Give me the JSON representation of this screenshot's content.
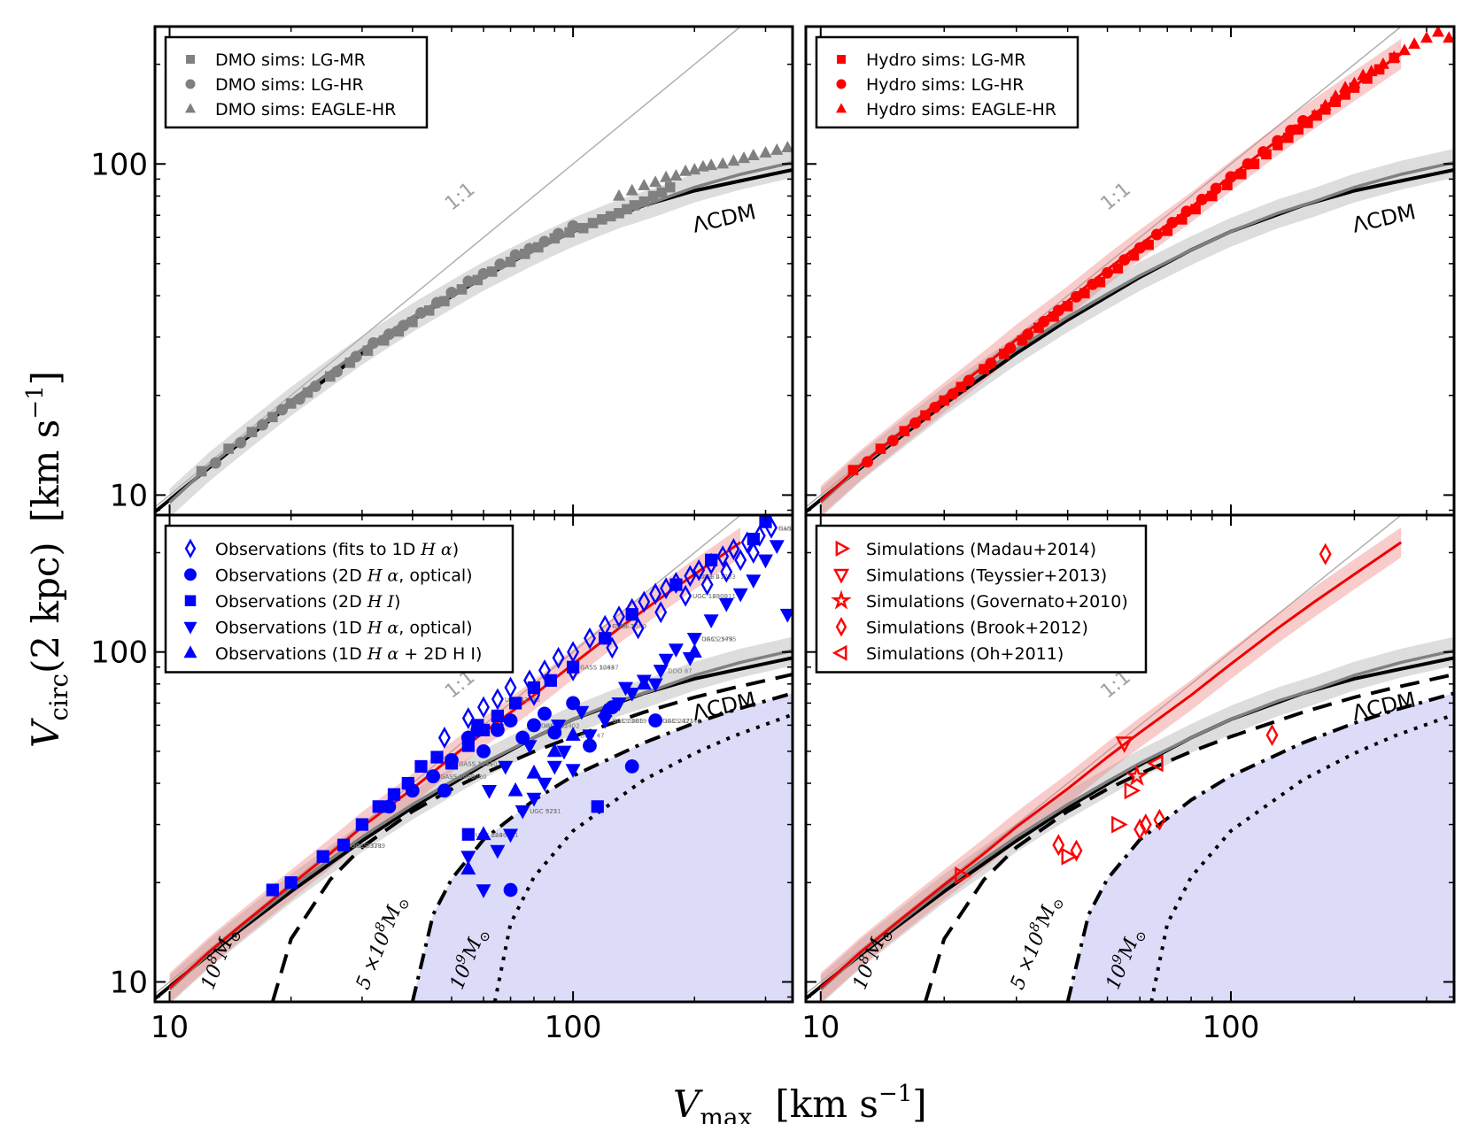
{
  "chart_data": {
    "type": "scatter",
    "layout": "2x2 grid, shared axes, log-log",
    "xlabel_main": "V",
    "xlabel_sub": "max",
    "xlabel_units": "[km s",
    "xlabel_exp": "−1",
    "xlabel_close": "]",
    "ylabel_main": "V",
    "ylabel_sub": "circ",
    "ylabel_arg": "(2  kpc)",
    "ylabel_units": "[km s",
    "ylabel_exp": "−1",
    "ylabel_close": "]",
    "xlim": [
      9.2,
      350
    ],
    "ylim": [
      8.7,
      260
    ],
    "xticks": [
      10,
      100
    ],
    "xtick_labels": [
      "10",
      "100"
    ],
    "yticks": [
      10,
      100
    ],
    "ytick_labels": [
      "10",
      "100"
    ],
    "curve_labels": {
      "one_to_one": "1:1",
      "lcdm": "ΛCDM",
      "m1": "10",
      "m1_exp": "8",
      "m2": "5 ×10",
      "m2_exp": "8",
      "m3": "10",
      "m3_exp": "9",
      "msun": "M",
      "msun_sub": "⊙"
    },
    "lcdm_curve": {
      "x": [
        9.2,
        12,
        15,
        20,
        30,
        40,
        60,
        80,
        100,
        150,
        200,
        250,
        350
      ],
      "y": [
        8.9,
        11.6,
        14.4,
        18.8,
        26.8,
        33.8,
        45.5,
        55,
        62.5,
        75,
        83,
        88,
        96
      ]
    },
    "dmo_median": {
      "x": [
        10,
        12.5,
        15,
        20,
        25,
        30,
        40,
        50,
        60,
        80,
        100,
        130,
        160,
        200,
        260,
        350
      ],
      "y": [
        9.5,
        12.2,
        14.6,
        19.3,
        23.5,
        27.5,
        34.5,
        40.5,
        46,
        55,
        62.5,
        71,
        77,
        85,
        93,
        101
      ]
    },
    "hydro_median": {
      "x": [
        10,
        12.5,
        15,
        20,
        25,
        30,
        40,
        50,
        60,
        80,
        100,
        130,
        160,
        200,
        260
      ],
      "y": [
        9.6,
        12.3,
        14.8,
        19.7,
        24.5,
        29.5,
        38.5,
        48,
        57,
        74,
        92,
        118,
        142,
        172,
        215
      ]
    },
    "mass_curves": [
      {
        "label": "1e8",
        "style": "dashed",
        "x": [
          18,
          20,
          25,
          30,
          40,
          50,
          60,
          80,
          100,
          150,
          200,
          250,
          350
        ],
        "y": [
          8.7,
          13.5,
          20.4,
          25.6,
          32.9,
          38.4,
          42.8,
          49.9,
          55.4,
          65.7,
          72.9,
          77.9,
          85.5
        ]
      },
      {
        "label": "5e8",
        "style": "dashdot",
        "x": [
          40,
          45,
          50,
          60,
          80,
          100,
          150,
          200,
          250,
          350
        ],
        "y": [
          8.7,
          16,
          20.5,
          27,
          35.6,
          42.1,
          53.1,
          60.9,
          66.6,
          75
        ]
      },
      {
        "label": "1e9",
        "style": "dotted",
        "x": [
          64,
          70,
          80,
          100,
          150,
          200,
          250,
          350
        ],
        "y": [
          8.7,
          15,
          20.8,
          28.7,
          41,
          49.3,
          55.6,
          64.6
        ]
      }
    ],
    "panels": [
      {
        "id": "dmo",
        "legend": [
          "DMO sims: LG-MR",
          "DMO sims: LG-HR",
          "DMO sims: EAGLE-HR"
        ],
        "color": "#808080",
        "series": [
          {
            "name": "DMO sims: LG-MR",
            "marker": "square",
            "x": [
              12,
              14,
              16,
              18,
              20,
              22,
              25,
              28,
              31,
              34,
              37,
              40,
              44,
              48,
              53,
              58,
              63,
              70,
              76,
              82,
              90,
              98,
              106,
              112,
              118,
              124,
              130,
              136,
              142,
              150,
              158,
              166,
              174
            ],
            "y": [
              11.8,
              13.8,
              15.5,
              17.2,
              18.9,
              20.4,
              22.8,
              25.1,
              27.3,
              29.3,
              31.2,
              33.3,
              36.1,
              38.5,
              41.8,
              44.6,
              47.3,
              50.6,
              53.5,
              56,
              59.6,
              62.1,
              64,
              66.3,
              68,
              69.5,
              71,
              73,
              75,
              77,
              80,
              82,
              85
            ]
          },
          {
            "name": "DMO sims: LG-HR",
            "marker": "circle",
            "x": [
              13,
              15,
              17,
              19,
              21,
              23,
              26,
              29,
              32,
              35,
              38,
              42,
              46,
              50,
              55,
              60,
              66,
              72,
              78,
              85,
              92,
              100
            ],
            "y": [
              12.5,
              14.4,
              16.3,
              18.1,
              19.5,
              21.3,
              23.6,
              26.2,
              28.8,
              30.6,
              32.5,
              35.5,
              38.1,
              40.9,
              44.2,
              46.6,
              49.8,
              53.1,
              55.5,
              58.3,
              61.6,
              65
            ]
          },
          {
            "name": "DMO sims: EAGLE-HR",
            "marker": "triangle",
            "x": [
              130,
              140,
              150,
              160,
              170,
              180,
              190,
              200,
              210,
              220,
              235,
              250,
              265,
              280,
              300,
              320,
              340
            ],
            "y": [
              80,
              83,
              86,
              88,
              91,
              92,
              95,
              96,
              98,
              99,
              100,
              102,
              104,
              106,
              108,
              110,
              112
            ]
          }
        ]
      },
      {
        "id": "hydro",
        "legend": [
          "Hydro sims: LG-MR",
          "Hydro sims: LG-HR",
          "Hydro sims: EAGLE-HR"
        ],
        "color": "#ff0000",
        "series": [
          {
            "name": "Hydro sims: LG-MR",
            "marker": "square",
            "x": [
              12,
              14,
              16,
              18,
              20,
              22,
              25,
              28,
              31,
              34,
              37,
              40,
              44,
              48,
              53,
              58,
              63,
              70,
              76,
              82,
              90,
              98,
              106,
              114,
              122,
              130,
              138,
              146,
              154,
              162,
              170,
              180,
              190,
              200,
              215,
              230,
              250
            ],
            "y": [
              11.9,
              13.8,
              15.6,
              17.4,
              19.3,
              21.2,
              24,
              26.7,
              29.3,
              32,
              34.6,
              37.2,
              40.7,
              44,
              48.4,
              52.9,
              57,
              62.8,
              68,
              73,
              80,
              86.3,
              93.2,
              100,
              107,
              114,
              120,
              127,
              133,
              140,
              146,
              154,
              162,
              170,
              181,
              193,
              209
            ]
          },
          {
            "name": "Hydro sims: LG-HR",
            "marker": "circle",
            "x": [
              13,
              15,
              17,
              19,
              21,
              23,
              26,
              29,
              32,
              35,
              38,
              42,
              46,
              50,
              55,
              60,
              66,
              72,
              78,
              85,
              92,
              100,
              110,
              120,
              130,
              140,
              150
            ],
            "y": [
              12.6,
              14.6,
              16.5,
              18.4,
              20.2,
              22.2,
              25,
              27.8,
              30.6,
              33.4,
              36.1,
              39.7,
              43.3,
              46.9,
              51.3,
              55.8,
              61.2,
              66.5,
              71.9,
              78.1,
              84.3,
              91.4,
              100,
              108.8,
              117.5,
              126.3,
              135
            ]
          },
          {
            "name": "Hydro sims: EAGLE-HR",
            "marker": "triangle",
            "x": [
              160,
              170,
              180,
              190,
              200,
              210,
              220,
              235,
              250,
              265,
              280,
              300,
              320,
              340
            ],
            "y": [
              140,
              150,
              160,
              170,
              175,
              185,
              190,
              200,
              210,
              220,
              230,
              240,
              250,
              240
            ]
          }
        ]
      },
      {
        "id": "obs",
        "legend": [
          {
            "text": "Observations (fits to 1D ",
            "ital": "H α",
            "rest": ")"
          },
          {
            "text": "Observations (2D ",
            "ital": "H α",
            "rest": ", optical)"
          },
          {
            "text": "Observations (2D ",
            "ital": "H I",
            "rest": ")"
          },
          {
            "text": "Observations (1D ",
            "ital": "H α",
            "rest": ", optical)"
          },
          {
            "text": "Observations (1D ",
            "ital": "H α",
            "rest": " + 2D H I)"
          }
        ],
        "color": "#0000ff",
        "galaxy_labels": [
          "UGC 11748",
          "GASS 3509",
          "GASS 41783",
          "GASS 40247",
          "UGC 18900",
          "GASS 9463",
          "GASS 42402",
          "GASS 42141",
          "GASS 3189",
          "GASS 17640",
          "GASS 10447",
          "UGC 128",
          "UGC 925",
          "UGC 5005",
          "UGC 2574",
          "UGC 5750",
          "DDO 87",
          "DDO 47",
          "UGC 4173",
          "F568-3",
          "F583-1",
          "Haro 36",
          "UGC 1200211",
          "GASS 3050000",
          "UGC 731",
          "UGC 2371",
          "UGC 3371",
          "GASS 3311",
          "GASS 3283",
          "UGC 0846811",
          "UGC 5721",
          "GASS 3819",
          "GASS 3455"
        ],
        "series": [
          {
            "name": "Observations (fits to 1D Hα)",
            "marker": "diamond-open",
            "x": [
              48,
              55,
              60,
              65,
              70,
              78,
              85,
              92,
              100,
              110,
              120,
              130,
              140,
              150,
              160,
              170,
              180,
              195,
              205,
              220,
              235,
              250,
              270,
              290,
              310,
              65,
              80,
              100,
              125,
              145,
              165,
              190,
              215,
              240,
              260,
              280
            ],
            "y": [
              55,
              63,
              68,
              72,
              78,
              82,
              88,
              96,
              100,
              110,
              120,
              128,
              135,
              142,
              150,
              156,
              162,
              170,
              177,
              185,
              195,
              205,
              215,
              225,
              238,
              60,
              74,
              88,
              103,
              118,
              132,
              148,
              160,
              175,
              190,
              200
            ]
          },
          {
            "name": "Observations (2D Hα, optical)",
            "marker": "circle",
            "x": [
              35,
              40,
              45,
              50,
              55,
              60,
              65,
              70,
              75,
              80,
              85,
              90,
              100,
              110,
              125,
              140,
              160,
              70,
              58,
              48
            ],
            "y": [
              34,
              38,
              42,
              47,
              55,
              50,
              58,
              62,
              55,
              60,
              65,
              57,
              70,
              52,
              68,
              45,
              62,
              19,
              58,
              38
            ]
          },
          {
            "name": "Observations (2D HI)",
            "marker": "square",
            "x": [
              18,
              20,
              24,
              27,
              30,
              33,
              36,
              39,
              42,
              46,
              50,
              55,
              60,
              65,
              72,
              80,
              88,
              100,
              120,
              140,
              180,
              220,
              280,
              300,
              55,
              58,
              115
            ],
            "y": [
              19,
              20,
              24,
              26,
              30,
              34,
              37,
              40,
              45,
              48,
              46,
              52,
              58,
              64,
              70,
              78,
              82,
              90,
              110,
              130,
              160,
              190,
              220,
              248,
              28,
              60,
              34
            ]
          },
          {
            "name": "Observations (1D Hα, optical)",
            "marker": "triangle-down",
            "x": [
              55,
              60,
              65,
              70,
              75,
              80,
              85,
              90,
              95,
              100,
              110,
              120,
              130,
              140,
              150,
              160,
              170,
              180,
              200,
              220,
              240,
              260,
              280,
              300,
              320,
              340,
              62,
              68,
              78,
              92,
              105,
              135,
              165,
              195
            ],
            "y": [
              24,
              19,
              25,
              28,
              33,
              36,
              40,
              45,
              50,
              44,
              56,
              62,
              70,
              75,
              82,
              80,
              95,
              102,
              110,
              125,
              140,
              150,
              165,
              190,
              210,
              130,
              38,
              45,
              52,
              60,
              66,
              78,
              88,
              96
            ]
          },
          {
            "name": "Observations (1D Hα + 2D HI)",
            "marker": "triangle-up",
            "x": [
              55,
              60,
              72,
              80,
              90,
              100,
              120,
              150,
              200
            ],
            "y": [
              22,
              28,
              38,
              43,
              50,
              56,
              66,
              80,
              100
            ]
          }
        ]
      },
      {
        "id": "sims",
        "legend": [
          "Simulations (Madau+2014)",
          "Simulations (Teyssier+2013)",
          "Simulations (Governato+2010)",
          "Simulations (Brook+2012)",
          "Simulations (Oh+2011)"
        ],
        "color": "#ff0000",
        "series": [
          {
            "name": "Simulations (Madau+2014)",
            "marker": "triangle-right-open",
            "x": [
              22,
              40,
              53,
              57
            ],
            "y": [
              21,
              24,
              30,
              38
            ]
          },
          {
            "name": "Simulations (Teyssier+2013)",
            "marker": "triangle-down-open",
            "x": [
              55
            ],
            "y": [
              53
            ]
          },
          {
            "name": "Simulations (Governato+2010)",
            "marker": "star-open",
            "x": [
              59
            ],
            "y": [
              42
            ]
          },
          {
            "name": "Simulations (Brook+2012)",
            "marker": "diamond-open",
            "x": [
              38,
              42,
              60,
              62,
              67,
              126,
              170
            ],
            "y": [
              26,
              25,
              29,
              30,
              31,
              56,
              198
            ]
          },
          {
            "name": "Simulations (Oh+2011)",
            "marker": "triangle-left-open",
            "x": [
              66
            ],
            "y": [
              46
            ]
          }
        ]
      }
    ]
  }
}
